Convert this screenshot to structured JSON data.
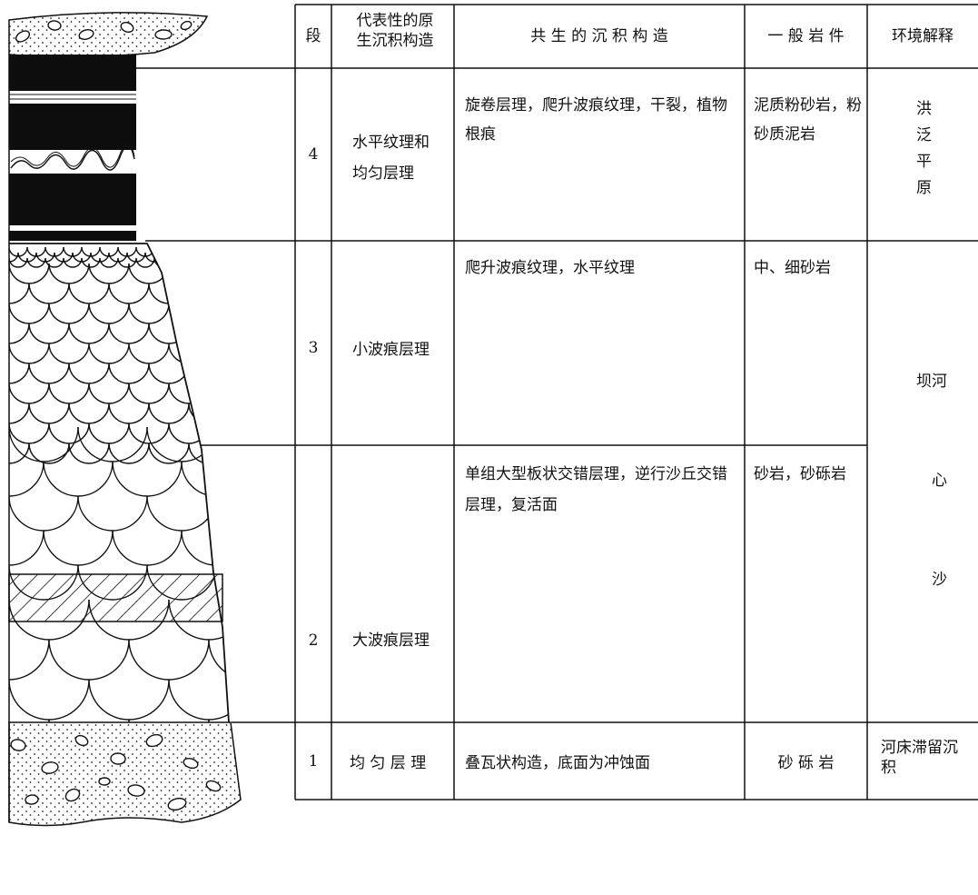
{
  "table": {
    "headers": [
      "段",
      "代表性的原生沉积构造",
      "共 生 的 沉 积 构 造",
      "一 般 岩 件",
      "环境解释"
    ],
    "rows": [
      {
        "segment": "4",
        "structure": "水平纹理和均匀层理",
        "associated": "旋卷层理，爬升波痕纹理，干裂，植物根痕",
        "lithology": "泥质粉砂岩，粉砂质泥岩"
      },
      {
        "segment": "3",
        "structure": "小波痕层理",
        "associated": "爬升波痕纹理，水平纹理",
        "lithology": "中、细砂岩"
      },
      {
        "segment": "2",
        "structure": "大波痕层理",
        "associated": "单组大型板状交错层理，逆行沙丘交错层理，复活面",
        "lithology": "砂岩，砂砾岩"
      },
      {
        "segment": "1",
        "structure": "均 匀 层 理",
        "associated": "叠瓦状构造，底面为冲蚀面",
        "lithology": "砂 砾 岩"
      }
    ],
    "environments": [
      "洪泛平原",
      "河心沙坝",
      "河床滞留沉积"
    ]
  }
}
